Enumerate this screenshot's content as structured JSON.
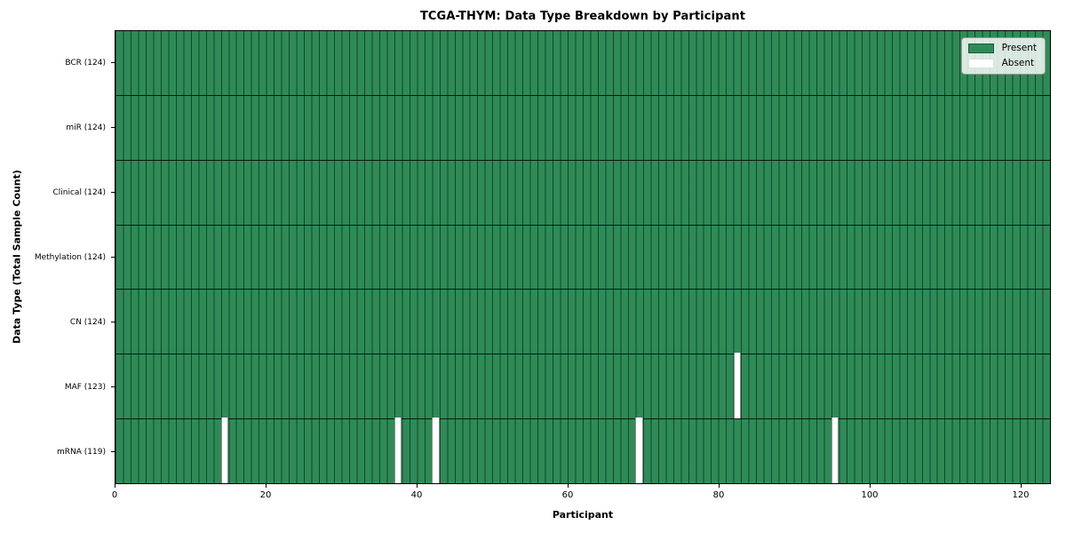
{
  "chart_data": {
    "type": "heatmap",
    "title": "TCGA-THYM: Data Type Breakdown by Participant",
    "xlabel": "Participant",
    "ylabel": "Data Type (Total Sample Count)",
    "x_range": [
      0,
      124
    ],
    "x_ticks": [
      0,
      20,
      40,
      60,
      80,
      100,
      120
    ],
    "n_participants": 124,
    "grid": "cell-borders",
    "legend_position": "upper-right",
    "legend": [
      {
        "label": "Present",
        "color": "#2e8b57"
      },
      {
        "label": "Absent",
        "color": "#ffffff"
      }
    ],
    "colors": {
      "present": "#2e8b57",
      "absent": "#ffffff",
      "cell_edge": "rgba(0,0,0,0.5)",
      "row_separator": "rgba(0,0,0,0.8)"
    },
    "rows": [
      {
        "data_type": "BCR",
        "label": "BCR (124)",
        "present_count": 124,
        "absent_participants": []
      },
      {
        "data_type": "miR",
        "label": "miR (124)",
        "present_count": 124,
        "absent_participants": []
      },
      {
        "data_type": "Clinical",
        "label": "Clinical (124)",
        "present_count": 124,
        "absent_participants": []
      },
      {
        "data_type": "Methylation",
        "label": "Methylation (124)",
        "present_count": 124,
        "absent_participants": []
      },
      {
        "data_type": "CN",
        "label": "CN (124)",
        "present_count": 124,
        "absent_participants": []
      },
      {
        "data_type": "MAF",
        "label": "MAF (123)",
        "present_count": 123,
        "absent_participants": [
          82
        ]
      },
      {
        "data_type": "mRNA",
        "label": "mRNA (119)",
        "present_count": 119,
        "absent_participants": [
          14,
          37,
          42,
          69,
          95
        ]
      }
    ]
  }
}
